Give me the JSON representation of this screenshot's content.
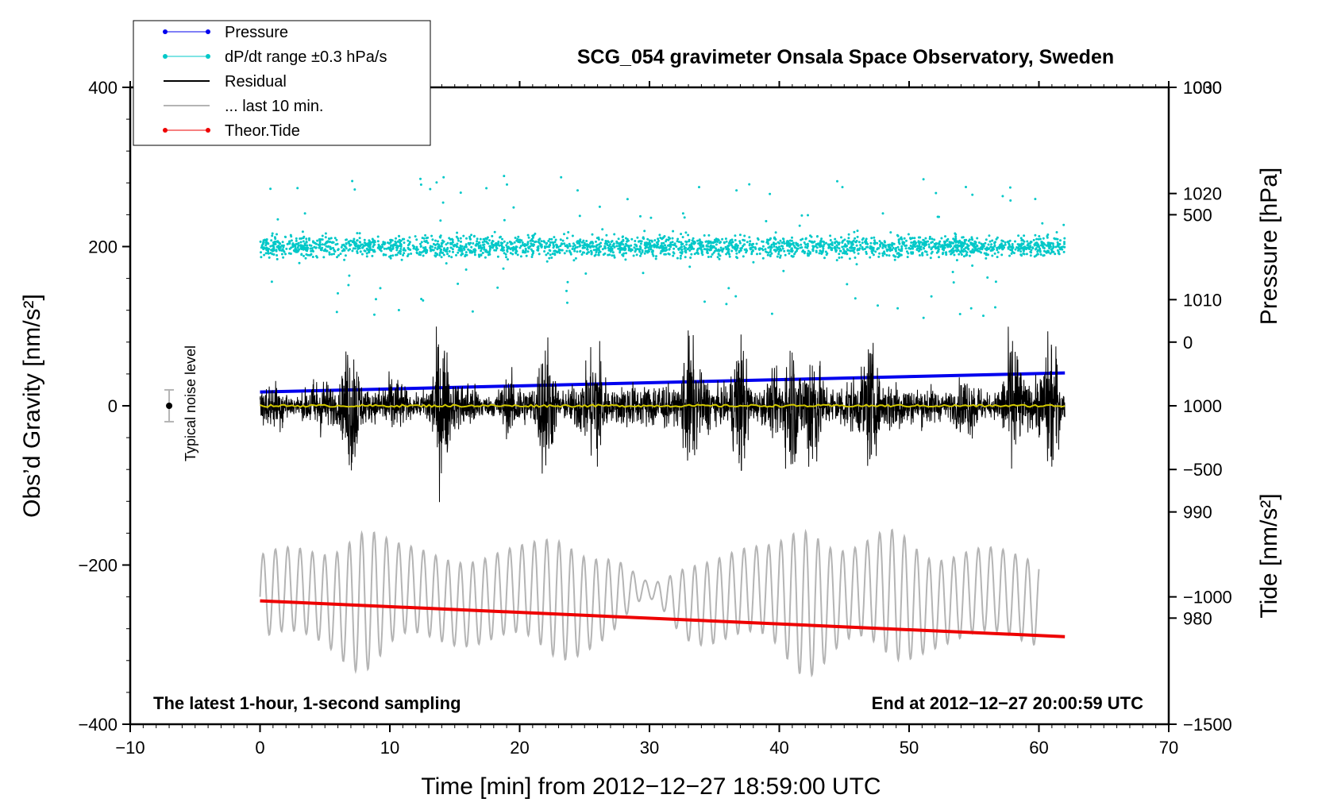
{
  "chart_data": {
    "type": "line",
    "title": "SCG_054 gravimeter Onsala Space Observatory, Sweden",
    "xlabel": "Time [min] from 2012−12−27 18:59:00 UTC",
    "ylabel_left": "Obs’d Gravity [nm/s²]",
    "ylabel_right_pressure": "Pressure [hPa]",
    "ylabel_right_tide": "Tide [nm/s²]",
    "xlim": [
      -10,
      70
    ],
    "ylim_left": [
      -400,
      400
    ],
    "xticks": [
      -10,
      0,
      10,
      20,
      30,
      40,
      50,
      60,
      70
    ],
    "xtick_labels": [
      "−10",
      "0",
      "10",
      "20",
      "30",
      "40",
      "50",
      "60",
      "70"
    ],
    "yticks_left": [
      400,
      200,
      0,
      -200,
      -400
    ],
    "ytick_labels_left": [
      "400",
      "200",
      "0",
      "−200",
      "−400"
    ],
    "pressure_axis": {
      "range": [
        970,
        1030
      ],
      "ticks": [
        1030,
        1020,
        1010,
        1000,
        990,
        980
      ],
      "tick_labels": [
        "1030",
        "1020",
        "1010",
        "1000",
        "990",
        "980"
      ]
    },
    "tide_axis": {
      "range": [
        -1500,
        1000
      ],
      "ticks": [
        1000,
        500,
        0,
        -500,
        -1000,
        -1500
      ],
      "tick_labels": [
        "1000",
        "500",
        "0",
        "−500",
        "−1000",
        "−1500"
      ]
    },
    "legend": {
      "placement": "top-left",
      "entries": [
        {
          "label": "Pressure",
          "color": "#0000ee",
          "style": "line-dot"
        },
        {
          "label": "dP/dt range ±0.3 hPa/s",
          "color": "#00c8c8",
          "style": "line-dot"
        },
        {
          "label": "Residual",
          "color": "#000000",
          "style": "line"
        },
        {
          "label": "... last 10 min.",
          "color": "#b4b4b4",
          "style": "line"
        },
        {
          "label": "Theor.Tide",
          "color": "#ee0000",
          "style": "line-dot"
        }
      ]
    },
    "series": [
      {
        "name": "Pressure",
        "axis": "pressure",
        "color": "#0000ee",
        "x": [
          0,
          62
        ],
        "y": [
          1001.3,
          1003.1
        ]
      },
      {
        "name": "dP/dt range ±0.3 hPa/s",
        "axis": "left",
        "color": "#00c8c8",
        "x_range": [
          0,
          62
        ],
        "center": 200,
        "spread": 12
      },
      {
        "name": "Residual",
        "axis": "left",
        "color": "#000000",
        "x_range": [
          0,
          62
        ],
        "center": 0,
        "typical_amplitude": 60,
        "peak": 165
      },
      {
        "name": "Residual mean",
        "axis": "left",
        "color": "#d2c800",
        "x_range": [
          0,
          62
        ],
        "value": 0
      },
      {
        "name": "... last 10 min.",
        "axis": "left",
        "color": "#b4b4b4",
        "x_range": [
          0,
          60
        ],
        "center": -240,
        "amplitude": 70
      },
      {
        "name": "Theor.Tide",
        "axis": "left",
        "color": "#ee0000",
        "x": [
          0,
          62
        ],
        "y": [
          -245,
          -290
        ]
      }
    ],
    "noise_marker": {
      "label": "Typical noise level",
      "x": -7,
      "y": 0,
      "error": 20
    },
    "annotations": {
      "bottom_left": "The latest 1-hour, 1-second sampling",
      "bottom_right": "End at 2012−12−27 20:00:59 UTC"
    }
  }
}
